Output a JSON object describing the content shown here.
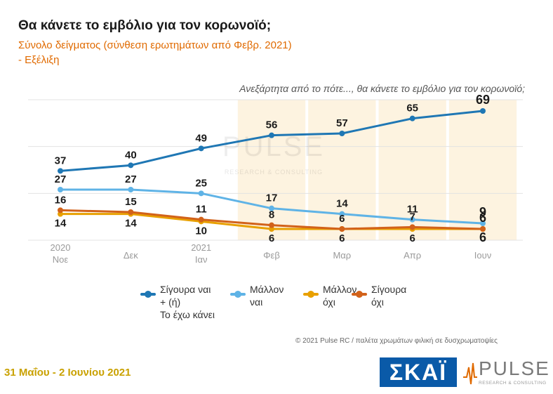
{
  "header": {
    "title": "Θα κάνετε το εμβόλιο για τον κορωνοϊό;",
    "subtitle": "Σύνολο δείγματος (σύνθεση ερωτημάτων από Φεβρ. 2021)",
    "subtitle2": " - Εξέλιξη"
  },
  "question": "Ανεξάρτητα από το πότε..., θα κάνετε το εμβόλιο για τον κορωνοϊό;",
  "watermark": {
    "word": "PULSE",
    "tag": "RESEARCH & CONSULTING"
  },
  "credit": "© 2021 Pulse RC  /  παλέτα χρωμάτων φιλική σε δυσχρωματοψίες",
  "date": "31 Μαΐου - 2 Ιουνίου 2021",
  "logos": {
    "skai": "ΣΚΑΪ",
    "pulse_word": "PULSE",
    "pulse_tag": "RESEARCH & CONSULTING"
  },
  "legend": [
    {
      "label_lines": [
        "Σίγουρα ναι",
        "+ (ή)",
        "Το έχω κάνει"
      ],
      "color": "#1f77b4"
    },
    {
      "label_lines": [
        "Μάλλον",
        "ναι"
      ],
      "color": "#5fb3e6"
    },
    {
      "label_lines": [
        "Μάλλον",
        "όχι"
      ],
      "color": "#e8a000"
    },
    {
      "label_lines": [
        "Σίγουρα",
        "όχι"
      ],
      "color": "#d2621a"
    }
  ],
  "chart_data": {
    "type": "line",
    "categories": [
      "2020 Νοε",
      "Δεκ",
      "2021 Ιαν",
      "Φεβ",
      "Μαρ",
      "Απρ",
      "Ιουν"
    ],
    "category_lines": [
      [
        "2020",
        "Νοε"
      ],
      [
        "Δεκ"
      ],
      [
        "2021",
        "Ιαν"
      ],
      [
        "Φεβ"
      ],
      [
        "Μαρ"
      ],
      [
        "Απρ"
      ],
      [
        "Ιουν"
      ]
    ],
    "highlighted_from_index": 3,
    "highlight_color": "#fdf3e0",
    "ylim": [
      0,
      75
    ],
    "grid": true,
    "series": [
      {
        "name": "Σίγουρα ναι + (ή) Το έχω κάνει",
        "values": [
          37,
          40,
          49,
          56,
          57,
          65,
          69
        ],
        "color": "#1f77b4"
      },
      {
        "name": "Μάλλον ναι",
        "values": [
          27,
          27,
          25,
          17,
          14,
          11,
          9
        ],
        "color": "#5fb3e6"
      },
      {
        "name": "Μάλλον όχι",
        "values": [
          14,
          14,
          10,
          6,
          6,
          6,
          6
        ],
        "color": "#e8a000"
      },
      {
        "name": "Σίγουρα όχι",
        "values": [
          16,
          15,
          11,
          8,
          6,
          7,
          6
        ],
        "color": "#d2621a"
      }
    ]
  }
}
